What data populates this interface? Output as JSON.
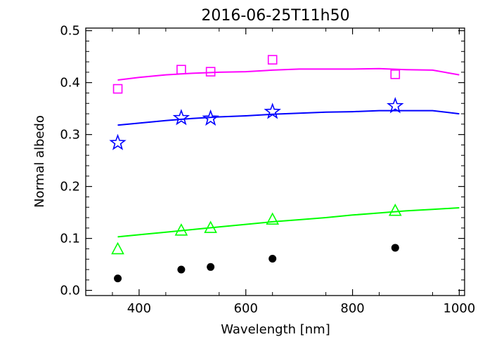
{
  "chart_data": {
    "type": "scatter",
    "title": "2016-06-25T11h50",
    "xlabel": "Wavelength [nm]",
    "ylabel": "Normal albedo",
    "xlim": [
      300,
      1010
    ],
    "ylim": [
      -0.01,
      0.505
    ],
    "xticks": [
      400,
      600,
      800,
      1000
    ],
    "xtick_labels": [
      "400",
      "600",
      "800",
      "1000"
    ],
    "yticks": [
      0.0,
      0.1,
      0.2,
      0.3,
      0.4,
      0.5
    ],
    "ytick_labels": [
      "0.0",
      "0.1",
      "0.2",
      "0.3",
      "0.4",
      "0.5"
    ],
    "grid": false,
    "series": [
      {
        "name": "magenta-squares",
        "marker": "square",
        "color": "#ff00ff",
        "x": [
          360,
          479,
          534,
          650,
          880
        ],
        "y": [
          0.388,
          0.425,
          0.421,
          0.444,
          0.416
        ],
        "line": {
          "x": [
            360,
            400,
            450,
            500,
            550,
            600,
            650,
            700,
            750,
            800,
            850,
            900,
            950,
            1000
          ],
          "y": [
            0.405,
            0.41,
            0.415,
            0.418,
            0.42,
            0.421,
            0.424,
            0.426,
            0.426,
            0.426,
            0.427,
            0.425,
            0.424,
            0.415
          ]
        }
      },
      {
        "name": "blue-stars",
        "marker": "star",
        "color": "#0000ff",
        "x": [
          360,
          479,
          534,
          650,
          880
        ],
        "y": [
          0.284,
          0.332,
          0.331,
          0.344,
          0.355
        ],
        "line": {
          "x": [
            360,
            400,
            450,
            500,
            550,
            600,
            650,
            700,
            750,
            800,
            850,
            900,
            950,
            1000
          ],
          "y": [
            0.318,
            0.322,
            0.327,
            0.331,
            0.334,
            0.336,
            0.339,
            0.341,
            0.343,
            0.344,
            0.346,
            0.346,
            0.346,
            0.34
          ]
        }
      },
      {
        "name": "green-triangles",
        "marker": "triangle",
        "color": "#00ff00",
        "x": [
          360,
          479,
          534,
          650,
          880
        ],
        "y": [
          0.08,
          0.116,
          0.121,
          0.137,
          0.154
        ],
        "line": {
          "x": [
            360,
            400,
            450,
            500,
            550,
            600,
            650,
            700,
            750,
            800,
            850,
            900,
            950,
            1000
          ],
          "y": [
            0.103,
            0.107,
            0.112,
            0.117,
            0.122,
            0.127,
            0.132,
            0.136,
            0.14,
            0.145,
            0.149,
            0.153,
            0.156,
            0.159
          ]
        }
      },
      {
        "name": "black-dots",
        "marker": "filled-circle",
        "color": "#000000",
        "x": [
          360,
          479,
          534,
          650,
          880
        ],
        "y": [
          0.023,
          0.04,
          0.045,
          0.061,
          0.082
        ],
        "line": null
      }
    ]
  }
}
